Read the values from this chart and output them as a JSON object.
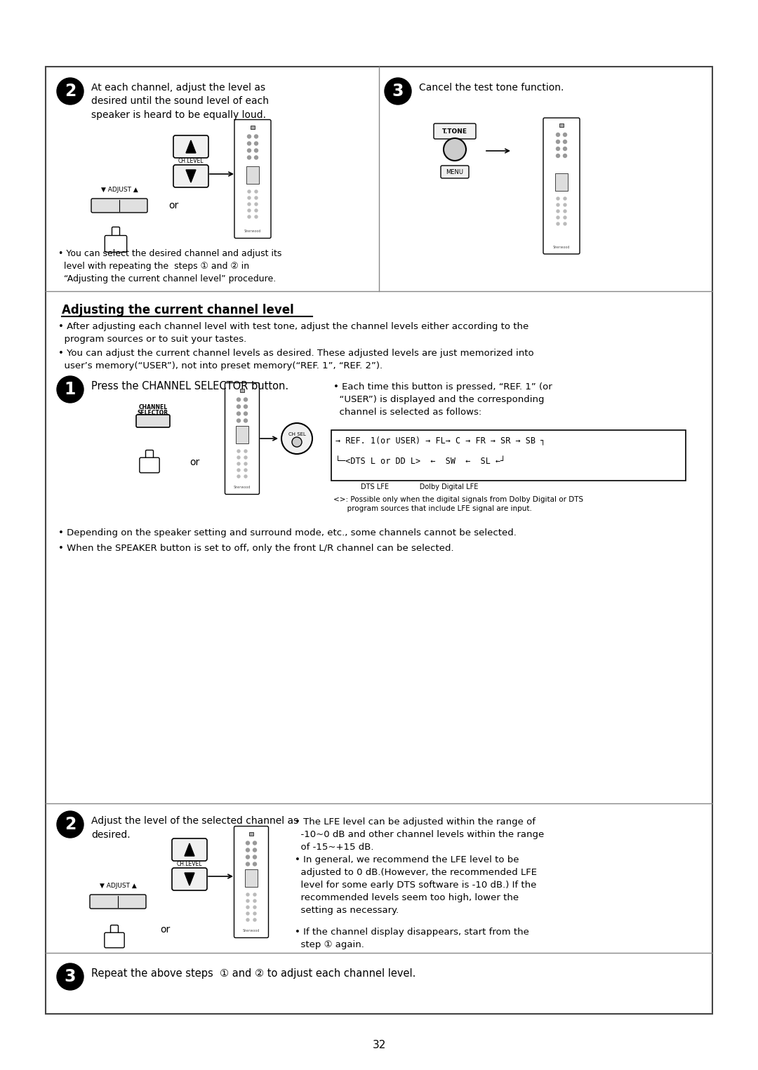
{
  "page_bg": "#ffffff",
  "border_color": "#555555",
  "text_color": "#000000",
  "page_number": "32",
  "section_title": "Adjusting the current channel level",
  "top_section": {
    "step2_text": "At each channel, adjust the level as\ndesired until the sound level of each\nspeaker is heard to be equally loud.",
    "step3_text": "Cancel the test tone function.",
    "note_text": "• You can select the desired channel and adjust its\n  level with repeating the  steps ① and ② in\n  “Adjusting the current channel level” procedure."
  },
  "middle_section": {
    "bullet1": "• After adjusting each channel level with test tone, adjust the channel levels either according to the\n  program sources or to suit your tastes.",
    "bullet2": "• You can adjust the current channel levels as desired. These adjusted levels are just memorized into\n  user’s memory(“USER”), not into preset memory(“REF. 1”, “REF. 2”).",
    "step1_text": "Press the CHANNEL SELECTOR button.",
    "step1_bullet": "• Each time this button is pressed, “REF. 1” (or\n  “USER”) is displayed and the corresponding\n  channel is selected as follows:",
    "flow_line1": "→ REF. 1(or USER) → FL→ C → FR → SR → SB ┐",
    "flow_line2": "└─<DTS L or DD L>  ←  SW  ←  SL ←┘",
    "flow_sub1": "DTS LFE              Dolby Digital LFE",
    "flow_note": "<>: Possible only when the digital signals from Dolby Digital or DTS\n      program sources that include LFE signal are input.",
    "bullet3": "• Depending on the speaker setting and surround mode, etc., some channels cannot be selected.",
    "bullet4": "• When the SPEAKER button is set to off, only the front L/R channel can be selected."
  },
  "bottom_section": {
    "step2_text": "Adjust the level of the selected channel as\ndesired.",
    "bullet1": "• The LFE level can be adjusted within the range of\n  -10~0 dB and other channel levels within the range\n  of -15~+15 dB.",
    "bullet2": "• In general, we recommend the LFE level to be\n  adjusted to 0 dB.(However, the recommended LFE\n  level for some early DTS software is -10 dB.) If the\n  recommended levels seem too high, lower the\n  setting as necessary.",
    "bullet3": "• If the channel display disappears, start from the\n  step ① again.",
    "step3_text": "Repeat the above steps  ① and ② to adjust each channel level."
  }
}
